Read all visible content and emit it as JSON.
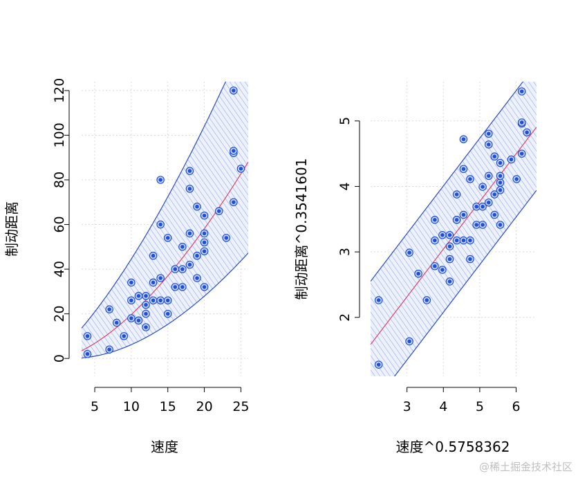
{
  "watermark": "@稀土掘金技术社区",
  "chart_data": [
    {
      "type": "scatter",
      "title": "",
      "xlabel": "速度",
      "ylabel": "制动距离",
      "xlim": [
        3.2,
        26
      ],
      "ylim": [
        -8,
        124
      ],
      "xticks": [
        5,
        10,
        15,
        20,
        25
      ],
      "yticks": [
        0,
        20,
        40,
        60,
        80,
        100,
        120
      ],
      "grid": true,
      "point_color": "#1f4fd6",
      "band_color": "#6b8ef0",
      "band_edge_color": "#2a48c8",
      "fit_color": "#e0425a",
      "fit_power": 2.824,
      "fit_coef": [
        1.61,
        0.2565
      ],
      "band_coef": [
        0.66,
        0.2565
      ],
      "points": [
        [
          4,
          2
        ],
        [
          4,
          10
        ],
        [
          7,
          4
        ],
        [
          7,
          22
        ],
        [
          8,
          16
        ],
        [
          9,
          10
        ],
        [
          10,
          18
        ],
        [
          10,
          26
        ],
        [
          10,
          34
        ],
        [
          11,
          17
        ],
        [
          11,
          28
        ],
        [
          12,
          14
        ],
        [
          12,
          20
        ],
        [
          12,
          24
        ],
        [
          12,
          28
        ],
        [
          13,
          26
        ],
        [
          13,
          34
        ],
        [
          13,
          34
        ],
        [
          13,
          46
        ],
        [
          14,
          26
        ],
        [
          14,
          36
        ],
        [
          14,
          60
        ],
        [
          14,
          80
        ],
        [
          15,
          20
        ],
        [
          15,
          26
        ],
        [
          15,
          54
        ],
        [
          16,
          32
        ],
        [
          16,
          40
        ],
        [
          17,
          32
        ],
        [
          17,
          40
        ],
        [
          17,
          50
        ],
        [
          18,
          42
        ],
        [
          18,
          56
        ],
        [
          18,
          76
        ],
        [
          18,
          84
        ],
        [
          19,
          36
        ],
        [
          19,
          46
        ],
        [
          19,
          68
        ],
        [
          20,
          32
        ],
        [
          20,
          48
        ],
        [
          20,
          52
        ],
        [
          20,
          56
        ],
        [
          20,
          64
        ],
        [
          22,
          66
        ],
        [
          23,
          54
        ],
        [
          24,
          70
        ],
        [
          24,
          92
        ],
        [
          24,
          93
        ],
        [
          24,
          120
        ],
        [
          25,
          85
        ]
      ]
    },
    {
      "type": "scatter",
      "title": "",
      "xlabel": "速度^0.5758362",
      "ylabel": "制动距离^0.3541601",
      "xlim": [
        2.0,
        6.56
      ],
      "ylim": [
        1.1,
        5.6
      ],
      "xticks": [
        3,
        4,
        5,
        6
      ],
      "yticks": [
        2,
        3,
        4,
        5
      ],
      "grid": true,
      "point_color": "#1f4fd6",
      "band_color": "#6b8ef0",
      "band_edge_color": "#2a48c8",
      "fit_color": "#e0425a",
      "fit_line": [
        0.13,
        0.728
      ],
      "band_halfwidth": 0.965,
      "points": [
        [
          2.2224,
          1.2779
        ],
        [
          2.2224,
          2.2626
        ],
        [
          3.0657,
          1.6339
        ],
        [
          3.0657,
          2.9886
        ],
        [
          3.3127,
          2.667
        ],
        [
          3.5447,
          2.2626
        ],
        [
          3.7645,
          2.7823
        ],
        [
          3.7645,
          3.1749
        ],
        [
          3.7645,
          3.4891
        ],
        [
          3.974,
          2.7259
        ],
        [
          3.974,
          3.257
        ],
        [
          4.1748,
          2.5477
        ],
        [
          4.1748,
          2.8896
        ],
        [
          4.1748,
          3.0838
        ],
        [
          4.1748,
          3.257
        ],
        [
          4.3681,
          3.1749
        ],
        [
          4.3681,
          3.4891
        ],
        [
          4.3681,
          3.4891
        ],
        [
          4.3681,
          3.8776
        ],
        [
          4.5546,
          3.1749
        ],
        [
          4.5546,
          3.5658
        ],
        [
          4.5546,
          4.2661
        ],
        [
          4.5546,
          4.72
        ],
        [
          4.735,
          2.8896
        ],
        [
          4.735,
          3.1749
        ],
        [
          4.735,
          4.1113
        ],
        [
          4.9099,
          3.4134
        ],
        [
          4.9099,
          3.6909
        ],
        [
          5.0798,
          3.4134
        ],
        [
          5.0798,
          3.6909
        ],
        [
          5.0798,
          3.9935
        ],
        [
          5.245,
          3.7538
        ],
        [
          5.245,
          4.1602
        ],
        [
          5.245,
          4.6399
        ],
        [
          5.245,
          4.8048
        ],
        [
          5.406,
          3.5658
        ],
        [
          5.406,
          3.8776
        ],
        [
          5.406,
          4.4568
        ],
        [
          5.5629,
          3.4134
        ],
        [
          5.5629,
          3.9432
        ],
        [
          5.5629,
          4.058
        ],
        [
          5.5629,
          4.1602
        ],
        [
          5.5629,
          4.3585
        ],
        [
          5.8659,
          4.4108
        ],
        [
          6.0124,
          4.1113
        ],
        [
          6.1557,
          4.5
        ],
        [
          6.1557,
          4.9588
        ],
        [
          6.1557,
          4.9765
        ],
        [
          6.1557,
          5.4508
        ],
        [
          6.296,
          4.8247
        ]
      ]
    }
  ]
}
